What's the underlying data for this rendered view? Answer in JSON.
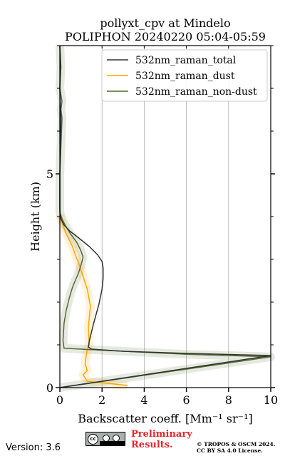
{
  "chart_data": {
    "type": "line",
    "title": [
      "pollyxt_cpv at Mindelo",
      "POLIPHON 20240220 05:04-05:59"
    ],
    "xlabel": "Backscatter coeff. [Mm⁻¹ sr⁻¹]",
    "ylabel": "Height (km)",
    "xlim": [
      0,
      10
    ],
    "ylim": [
      0,
      8
    ],
    "x_ticks": [
      0,
      2,
      4,
      6,
      8,
      10
    ],
    "y_ticks": [
      0,
      5
    ],
    "grid": "vertical",
    "legend_position": "top-right",
    "series": [
      {
        "name": "532nm_raman_total",
        "color": "#333333",
        "x": [
          0.0,
          10.0,
          6.0,
          3.0,
          1.5,
          1.35,
          1.4,
          1.6,
          1.85,
          2.0,
          2.05,
          2.05,
          2.0,
          1.8,
          1.4,
          0.9,
          0.5,
          0.2,
          0.05,
          0.02,
          0.0,
          0.0,
          0.05,
          0.02,
          0.0,
          0.02,
          0.0
        ],
        "y": [
          0.0,
          0.75,
          0.8,
          0.85,
          0.9,
          0.95,
          1.1,
          1.5,
          1.95,
          2.3,
          2.55,
          2.8,
          2.95,
          3.1,
          3.3,
          3.5,
          3.65,
          3.8,
          3.95,
          4.05,
          4.2,
          5.0,
          6.3,
          6.6,
          7.0,
          7.6,
          8.0
        ]
      },
      {
        "name": "532nm_raman_dust",
        "color": "#ffa500",
        "x": [
          3.2,
          1.3,
          1.1,
          1.3,
          1.2,
          1.25,
          1.3,
          1.4,
          1.35,
          1.45,
          1.3,
          1.1,
          0.9,
          0.7,
          0.6,
          0.45,
          0.3,
          0.1,
          0.0
        ],
        "y": [
          0.05,
          0.15,
          0.3,
          0.4,
          0.55,
          0.75,
          0.9,
          1.0,
          1.4,
          1.9,
          2.3,
          2.6,
          2.9,
          3.15,
          3.3,
          3.45,
          3.6,
          3.85,
          4.05
        ]
      },
      {
        "name": "532nm_raman_non-dust",
        "color": "#556b2f",
        "x": [
          0.0,
          0.0,
          10.0,
          6.0,
          3.0,
          1.0,
          0.2,
          0.15,
          0.2,
          0.3,
          0.45,
          0.6,
          0.9,
          1.05,
          1.1,
          1.0,
          0.8,
          0.5,
          0.25,
          0.1,
          0.0,
          0.0,
          0.1,
          0.05,
          0.1,
          0.0,
          0.05,
          0.0
        ],
        "y": [
          0.0,
          0.0,
          0.72,
          0.78,
          0.85,
          0.9,
          0.92,
          1.1,
          1.5,
          1.8,
          2.1,
          2.35,
          2.7,
          2.95,
          3.05,
          3.2,
          3.4,
          3.6,
          3.8,
          3.95,
          4.1,
          5.0,
          6.3,
          6.5,
          6.7,
          7.0,
          7.5,
          8.0
        ]
      }
    ]
  },
  "footer": {
    "version": "Version: 3.6",
    "preliminary": [
      "Preliminary",
      "Results."
    ],
    "copyright": [
      "© TROPOS & OSCM 2024.",
      "CC BY SA 4.0 License."
    ],
    "cc_badge_text": [
      "cc",
      "BY SA"
    ]
  }
}
